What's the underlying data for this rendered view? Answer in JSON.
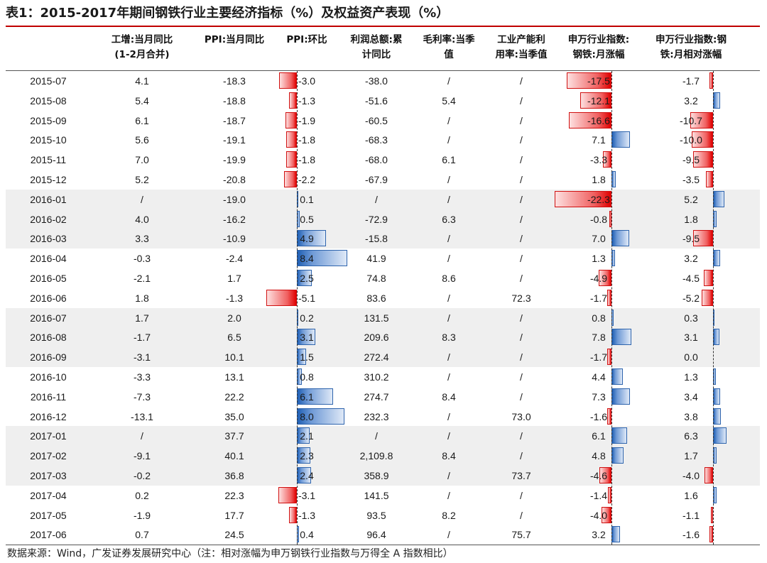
{
  "title": "表1：2015-2017年期间钢铁行业主要经济指标（%）及权益资产表现（%）",
  "headers": [
    "",
    "工增:当月同比\n(1-2月合并)",
    "PPI:当月同比",
    "PPI:环比",
    "利润总额:累\n计同比",
    "毛利率:当季\n值",
    "工业产能利\n用率:当季值",
    "申万行业指数:\n钢铁:月涨幅",
    "申万行业指数:钢\n铁:月相对涨幅"
  ],
  "rows": [
    [
      "2015-07",
      "4.1",
      "-18.3",
      "-3.0",
      "-38.0",
      "/",
      "/",
      "-17.5",
      "-1.7"
    ],
    [
      "2015-08",
      "5.4",
      "-18.8",
      "-1.3",
      "-51.6",
      "5.4",
      "/",
      "-12.1",
      "3.2"
    ],
    [
      "2015-09",
      "6.1",
      "-18.7",
      "-1.9",
      "-60.5",
      "/",
      "/",
      "-16.6",
      "-10.7"
    ],
    [
      "2015-10",
      "5.6",
      "-19.1",
      "-1.8",
      "-68.3",
      "/",
      "/",
      "7.1",
      "-10.0"
    ],
    [
      "2015-11",
      "7.0",
      "-19.9",
      "-1.8",
      "-68.0",
      "6.1",
      "/",
      "-3.3",
      "-9.5"
    ],
    [
      "2015-12",
      "5.2",
      "-20.8",
      "-2.2",
      "-67.9",
      "/",
      "/",
      "1.8",
      "-3.5"
    ],
    [
      "2016-01",
      "/",
      "-19.0",
      "0.1",
      "/",
      "/",
      "/",
      "-22.3",
      "5.2"
    ],
    [
      "2016-02",
      "4.0",
      "-16.2",
      "0.5",
      "-72.9",
      "6.3",
      "/",
      "-0.8",
      "1.8"
    ],
    [
      "2016-03",
      "3.3",
      "-10.9",
      "4.9",
      "-15.8",
      "/",
      "/",
      "7.0",
      "-9.5"
    ],
    [
      "2016-04",
      "-0.3",
      "-2.4",
      "8.4",
      "41.9",
      "/",
      "/",
      "1.3",
      "3.2"
    ],
    [
      "2016-05",
      "-2.1",
      "1.7",
      "2.5",
      "74.8",
      "8.6",
      "/",
      "-4.9",
      "-4.5"
    ],
    [
      "2016-06",
      "1.8",
      "-1.3",
      "-5.1",
      "83.6",
      "/",
      "72.3",
      "-1.7",
      "-5.2"
    ],
    [
      "2016-07",
      "1.7",
      "2.0",
      "0.2",
      "131.5",
      "/",
      "/",
      "0.8",
      "0.3"
    ],
    [
      "2016-08",
      "-1.7",
      "6.5",
      "3.1",
      "209.6",
      "8.3",
      "/",
      "7.8",
      "3.1"
    ],
    [
      "2016-09",
      "-3.1",
      "10.1",
      "1.5",
      "272.4",
      "/",
      "/",
      "-1.7",
      "0.0"
    ],
    [
      "2016-10",
      "-3.3",
      "13.1",
      "0.8",
      "310.2",
      "/",
      "/",
      "4.4",
      "1.3"
    ],
    [
      "2016-11",
      "-7.3",
      "22.2",
      "6.1",
      "274.7",
      "8.4",
      "/",
      "7.3",
      "3.4"
    ],
    [
      "2016-12",
      "-13.1",
      "35.0",
      "8.0",
      "232.3",
      "/",
      "73.0",
      "-1.6",
      "3.8"
    ],
    [
      "2017-01",
      "/",
      "37.7",
      "2.1",
      "/",
      "/",
      "/",
      "6.1",
      "6.3"
    ],
    [
      "2017-02",
      "-9.1",
      "40.1",
      "2.3",
      "2,109.8",
      "8.4",
      "/",
      "4.8",
      "1.7"
    ],
    [
      "2017-03",
      "-0.2",
      "36.8",
      "2.4",
      "358.9",
      "/",
      "73.7",
      "-4.6",
      "-4.0"
    ],
    [
      "2017-04",
      "0.2",
      "22.3",
      "-3.1",
      "141.5",
      "/",
      "/",
      "-1.4",
      "1.6"
    ],
    [
      "2017-05",
      "-1.9",
      "17.7",
      "-1.3",
      "93.5",
      "8.2",
      "/",
      "-4.0",
      "-1.1"
    ],
    [
      "2017-06",
      "0.7",
      "24.5",
      "0.4",
      "96.4",
      "/",
      "75.7",
      "3.2",
      "-1.6"
    ]
  ],
  "shaded_quarters": [
    2,
    4,
    6
  ],
  "colors": {
    "positive": "#2e64ad",
    "negative": "#d01010",
    "title_rule": "#c00000",
    "shade": "#efefef"
  },
  "footer": "数据来源：Wind，广发证券发展研究中心（注：相对涨幅为申万钢铁行业指数与万得全 A 指数相比）"
}
